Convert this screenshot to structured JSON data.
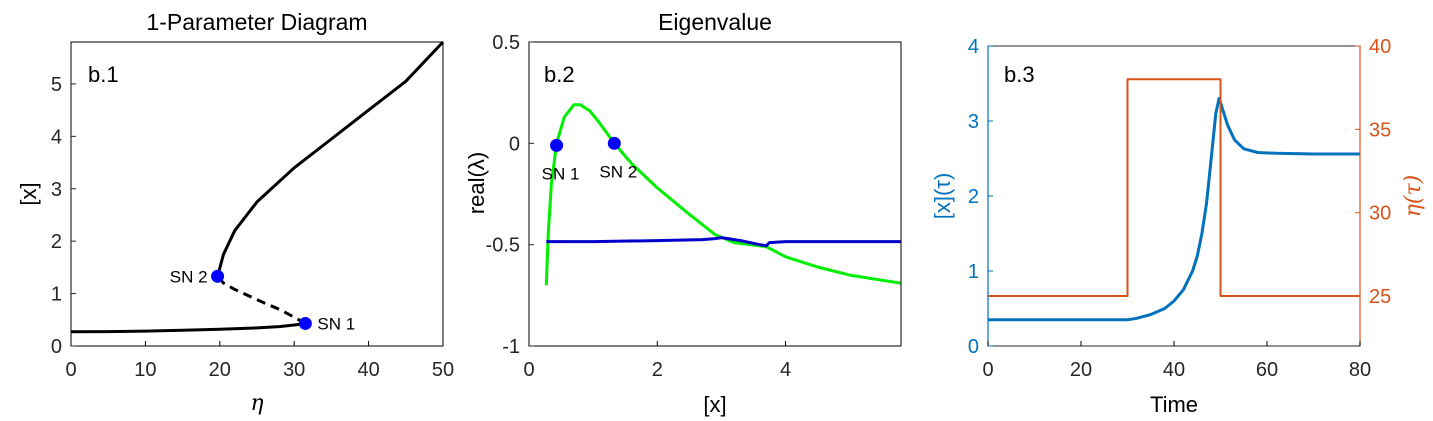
{
  "chart_data": [
    {
      "type": "line",
      "panel_label": "b.1",
      "title": "1-Parameter Diagram",
      "xlabel": "η",
      "ylabel": "[x]",
      "xlim": [
        0,
        50
      ],
      "ylim": [
        0,
        5.8
      ],
      "xticks": [
        "0",
        "10",
        "20",
        "30",
        "40",
        "50"
      ],
      "yticks": [
        "0",
        "1",
        "2",
        "3",
        "4",
        "5"
      ],
      "grid": false,
      "series": [
        {
          "role": "stable-lower",
          "style": "solid",
          "color": "#000000",
          "x": [
            0,
            5,
            10,
            15,
            20,
            25,
            28,
            30,
            31.5
          ],
          "y": [
            0.27,
            0.275,
            0.285,
            0.3,
            0.32,
            0.345,
            0.37,
            0.4,
            0.43
          ]
        },
        {
          "role": "unstable",
          "style": "dashed",
          "color": "#000000",
          "x": [
            31.5,
            30,
            28,
            26,
            24,
            22,
            20.5,
            19.7
          ],
          "y": [
            0.43,
            0.55,
            0.7,
            0.82,
            0.95,
            1.08,
            1.2,
            1.33
          ]
        },
        {
          "role": "stable-upper",
          "style": "solid",
          "color": "#000000",
          "x": [
            19.7,
            20.5,
            22,
            25,
            30,
            35,
            40,
            45,
            50
          ],
          "y": [
            1.33,
            1.75,
            2.2,
            2.75,
            3.4,
            3.95,
            4.5,
            5.05,
            5.8
          ]
        }
      ],
      "points": [
        {
          "label": "SN 1",
          "x": 31.5,
          "y": 0.43,
          "label_side": "right"
        },
        {
          "label": "SN 2",
          "x": 19.7,
          "y": 1.33,
          "label_side": "left"
        }
      ]
    },
    {
      "type": "line",
      "panel_label": "b.2",
      "title": "Eigenvalue",
      "xlabel": "[x]",
      "ylabel": "real(λ)",
      "xlim": [
        0,
        5.8
      ],
      "ylim": [
        -1,
        0.5
      ],
      "xticks": [
        "0",
        "2",
        "4"
      ],
      "yticks": [
        "-1",
        "-0.5",
        "0",
        "0.5"
      ],
      "grid": false,
      "series": [
        {
          "role": "eigenvalue-1",
          "color": "#00ee00",
          "x": [
            0.27,
            0.3,
            0.35,
            0.43,
            0.55,
            0.7,
            0.8,
            0.95,
            1.1,
            1.33,
            1.6,
            2.0,
            2.5,
            2.9,
            3.2,
            3.7,
            4.0,
            4.5,
            5.0,
            5.8
          ],
          "y": [
            -0.7,
            -0.45,
            -0.2,
            0.0,
            0.13,
            0.19,
            0.19,
            0.16,
            0.1,
            0.0,
            -0.1,
            -0.22,
            -0.35,
            -0.45,
            -0.49,
            -0.51,
            -0.56,
            -0.61,
            -0.65,
            -0.69
          ]
        },
        {
          "role": "eigenvalue-2",
          "color": "#0000cc",
          "x": [
            0.27,
            1,
            2,
            2.7,
            2.9,
            3.0,
            3.3,
            3.6,
            3.7,
            3.75,
            4.0,
            5.0,
            5.8
          ],
          "y": [
            -0.485,
            -0.485,
            -0.48,
            -0.475,
            -0.47,
            -0.465,
            -0.48,
            -0.5,
            -0.505,
            -0.49,
            -0.485,
            -0.485,
            -0.485
          ]
        }
      ],
      "points": [
        {
          "label": "SN 1",
          "x": 0.43,
          "y": -0.01,
          "label_side": "below"
        },
        {
          "label": "SN 2",
          "x": 1.33,
          "y": 0.0,
          "label_side": "below"
        }
      ]
    },
    {
      "type": "line",
      "panel_label": "b.3",
      "xlabel": "Time",
      "ylabel_left": "[x](τ)",
      "ylabel_right": "η(τ)",
      "xlim": [
        0,
        80
      ],
      "ylim_left": [
        0,
        4
      ],
      "ylim_right": [
        22,
        40
      ],
      "xticks": [
        "0",
        "20",
        "40",
        "60",
        "80"
      ],
      "yticks_left": [
        "0",
        "1",
        "2",
        "3",
        "4"
      ],
      "yticks_right": [
        "25",
        "30",
        "35",
        "40"
      ],
      "grid": false,
      "colors": {
        "left": "#0072bd",
        "right": "#d95319"
      },
      "series": [
        {
          "role": "x-response",
          "axis": "left",
          "color": "#0072bd",
          "x": [
            0,
            20,
            30,
            32,
            35,
            38,
            40,
            42,
            44,
            45,
            46,
            47,
            48,
            49,
            49.7,
            50.5,
            51.5,
            53,
            55,
            58,
            62,
            70,
            80
          ],
          "y": [
            0.35,
            0.35,
            0.35,
            0.37,
            0.42,
            0.5,
            0.6,
            0.75,
            1.0,
            1.2,
            1.5,
            1.9,
            2.5,
            3.1,
            3.3,
            3.15,
            2.95,
            2.75,
            2.63,
            2.58,
            2.57,
            2.56,
            2.56
          ]
        },
        {
          "role": "eta-input",
          "axis": "right",
          "color": "#d95319",
          "x": [
            0,
            30,
            30,
            50,
            50,
            80
          ],
          "y": [
            25,
            25,
            38,
            38,
            25,
            25
          ]
        }
      ]
    }
  ]
}
